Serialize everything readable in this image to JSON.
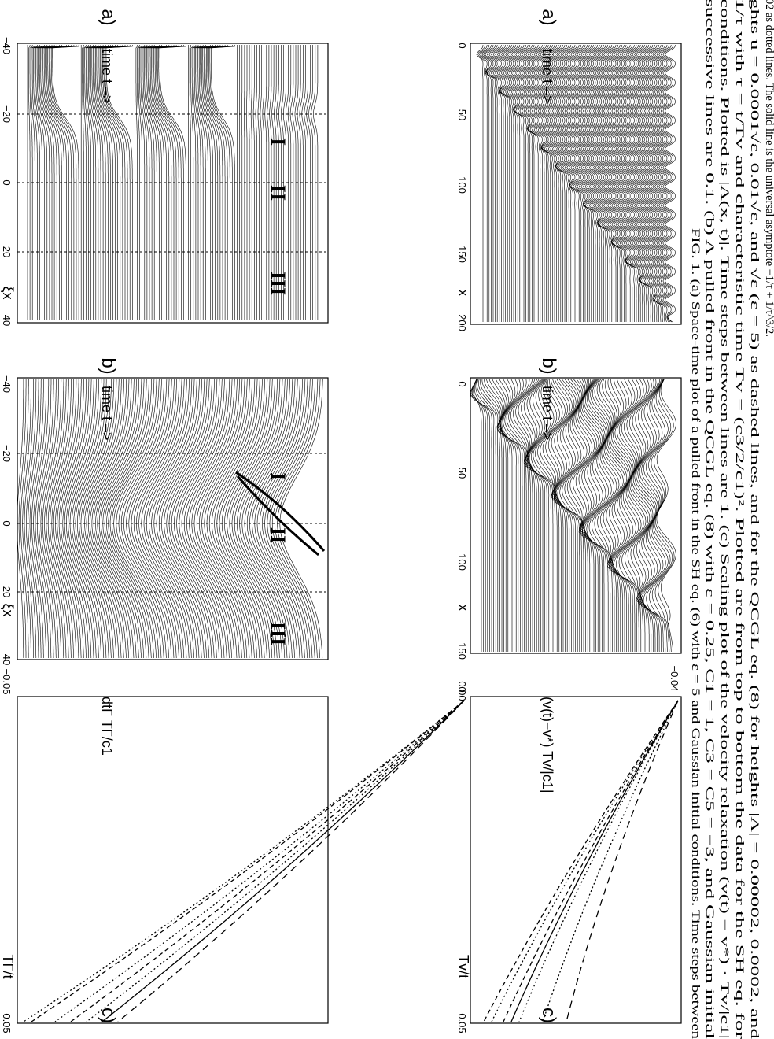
{
  "caption_lines": [
    "FIG. 1.  (a) Space-time plot of a pulled front in the SH eq. (6) with ε = 5 and Gaussian initial conditions. Time steps between",
    "successive lines are 0.1.  (b) A pulled front in the QCGL eq. (8) with ε = 0.25, C1 = 1, C3 = C5 = −3, and Gaussian initial",
    "conditions. Plotted is |A(x, t)|. Time steps between lines are 1.  (c) Scaling plot of the velocity relaxation (v(t) − v*) · Tv/|c1|",
    "1/τ with τ = t/Tv and characteristic time Tv = (c3/2/c1)². Plotted are from top to bottom the data for the SH eq. for",
    "ghts u = 0.0001√ε, 0.01√ε, and √ε (ε = 5) as dashed lines, and for the QCGL eq. (8) for heights |A| = 0.00002, 0.0002, and",
    "02 as dotted lines. The solid line is the universal asymptote −1/τ + 1/τ^3/2."
  ],
  "panels": [
    {
      "label": "a)",
      "ylabel": "time t –>",
      "xlabel": "x",
      "ticks": [
        "0",
        "50",
        "100",
        "150",
        "200"
      ]
    },
    {
      "label": "b)",
      "ylabel": "time t –>",
      "xlabel": "x",
      "ticks": [
        "0",
        "50",
        "100",
        "150"
      ]
    },
    {
      "label": "c)",
      "ylabel": "(v(t)−v*) Tv/|c1|",
      "xlabel": "Tv/t",
      "ticks": [
        "0",
        "0.05",
        "−0.04"
      ]
    },
    {
      "label": "a)",
      "ylabel": "time t –>",
      "xlabel": "ξx",
      "ticks": [
        "−40",
        "−20",
        "0",
        "20",
        "40"
      ],
      "regions": [
        "I",
        "II",
        "III"
      ]
    },
    {
      "label": "b)",
      "ylabel": "time t –>",
      "xlabel": "ξx",
      "ticks": [
        "−40",
        "−20",
        "0",
        "20",
        "40"
      ],
      "regions": [
        "I",
        "II",
        "III"
      ]
    },
    {
      "label": "c)",
      "ylabel": "dtΓ TΓ/c1",
      "xlabel": "TΓ/t",
      "ticks": [
        "0.00",
        "−0.05",
        "0.05"
      ]
    }
  ]
}
